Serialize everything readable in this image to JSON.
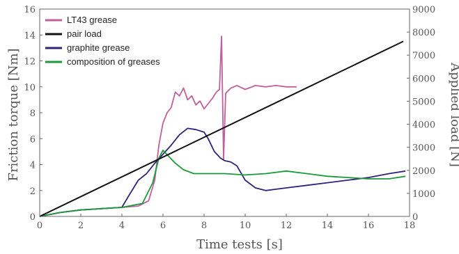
{
  "chart_data": {
    "type": "line",
    "xlabel": "Time tests [s]",
    "ylabel_left": "Friction torque [Nm]",
    "ylabel_right": "Applied load [N]",
    "xlim": [
      0,
      18
    ],
    "ylim_left": [
      0,
      16
    ],
    "ylim_right": [
      0,
      9000
    ],
    "x_ticks": [
      "0",
      "2",
      "4",
      "6",
      "8",
      "10",
      "12",
      "14",
      "16",
      "18"
    ],
    "y_left_ticks": [
      "0",
      "2",
      "4",
      "6",
      "8",
      "10",
      "12",
      "14",
      "16"
    ],
    "y_right_ticks": [
      "0",
      "1000",
      "2000",
      "3000",
      "4000",
      "5000",
      "6000",
      "7000",
      "8000",
      "9000"
    ],
    "grid": false,
    "legend_position": "top-left",
    "series": [
      {
        "name": "LT43 grease",
        "color": "#c0609a",
        "axis": "left",
        "x": [
          0,
          1,
          2,
          3,
          4,
          4.8,
          5.3,
          5.6,
          5.8,
          6.0,
          6.2,
          6.4,
          6.6,
          6.8,
          7.0,
          7.2,
          7.4,
          7.6,
          7.8,
          8.0,
          8.2,
          8.4,
          8.6,
          8.75,
          8.85,
          8.95,
          9.05,
          9.3,
          9.6,
          10.0,
          10.5,
          11.0,
          11.5,
          12.0,
          12.5
        ],
        "values": [
          0,
          0.3,
          0.5,
          0.6,
          0.7,
          0.8,
          1.2,
          2.8,
          5.5,
          7.2,
          8.0,
          8.4,
          9.6,
          9.3,
          9.9,
          9.0,
          9.3,
          8.6,
          8.9,
          8.3,
          8.7,
          9.1,
          9.6,
          9.8,
          13.9,
          4.4,
          9.5,
          9.9,
          10.1,
          9.8,
          10.1,
          10.0,
          10.1,
          10.0,
          10.0
        ]
      },
      {
        "name": "pair load",
        "color": "#111111",
        "axis": "right",
        "x": [
          0,
          17.7
        ],
        "values": [
          0,
          7600
        ]
      },
      {
        "name": "graphite grease",
        "color": "#2e2378",
        "axis": "left",
        "x": [
          0,
          1,
          2,
          3,
          4,
          4.3,
          4.8,
          5.2,
          5.6,
          6.0,
          6.4,
          6.8,
          7.2,
          7.6,
          8.0,
          8.2,
          8.5,
          8.8,
          9.0,
          9.3,
          9.6,
          10.0,
          10.5,
          11.0,
          11.5,
          12.0,
          13.0,
          14.0,
          15.0,
          16.0,
          17.0,
          17.8
        ],
        "values": [
          0,
          0.3,
          0.5,
          0.6,
          0.7,
          1.5,
          2.8,
          3.3,
          4.1,
          4.8,
          5.5,
          6.3,
          6.8,
          6.7,
          6.5,
          6.0,
          5.0,
          4.5,
          4.3,
          4.2,
          3.9,
          2.8,
          2.2,
          2.0,
          2.1,
          2.2,
          2.4,
          2.6,
          2.8,
          3.0,
          3.3,
          3.5
        ]
      },
      {
        "name": "composition of greases",
        "color": "#1a9a3a",
        "axis": "left",
        "x": [
          0,
          1,
          2,
          3,
          4,
          5.0,
          5.5,
          5.8,
          6.0,
          6.3,
          6.6,
          7.0,
          7.5,
          8.0,
          9.0,
          10.0,
          11.0,
          12.0,
          13.0,
          14.0,
          15.0,
          16.0,
          17.0,
          17.8
        ],
        "values": [
          0,
          0.3,
          0.5,
          0.6,
          0.7,
          1.0,
          2.6,
          4.5,
          5.1,
          4.6,
          4.1,
          3.6,
          3.3,
          3.3,
          3.3,
          3.2,
          3.3,
          3.5,
          3.3,
          3.1,
          3.0,
          2.9,
          2.9,
          3.1
        ]
      }
    ]
  }
}
